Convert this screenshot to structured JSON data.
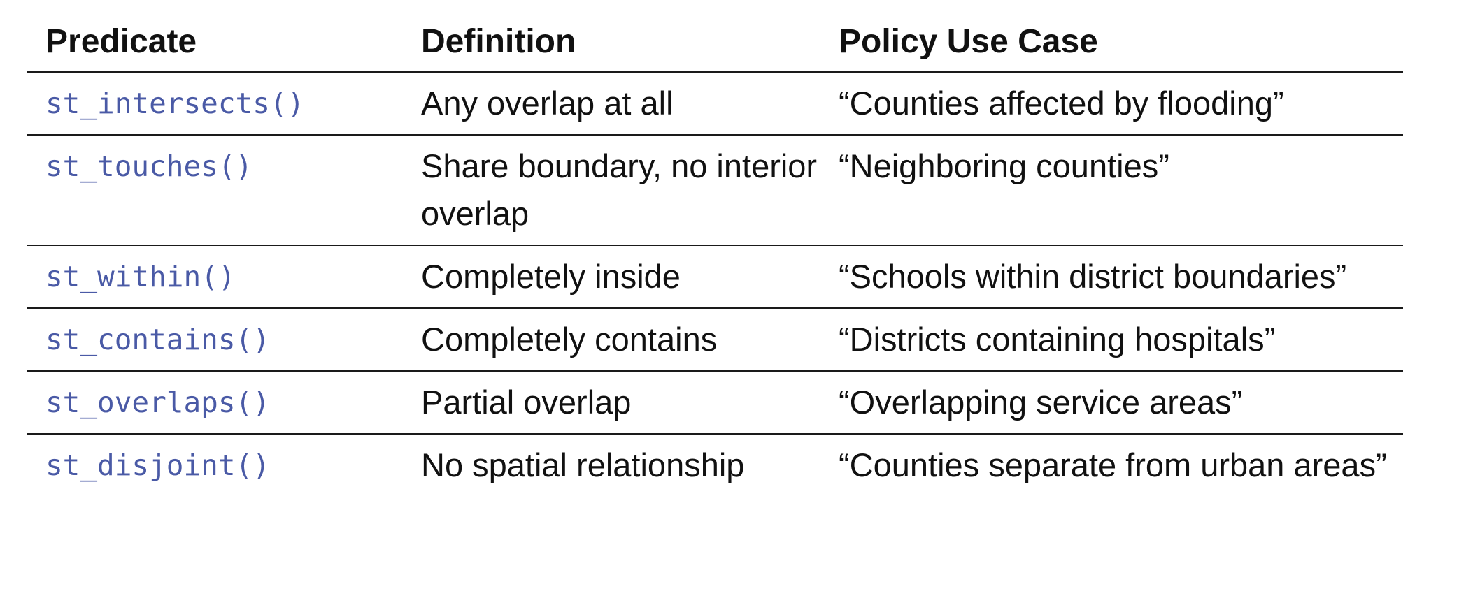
{
  "headers": {
    "predicate": "Predicate",
    "definition": "Definition",
    "policy": "Policy Use Case"
  },
  "rows": [
    {
      "predicate": "st_intersects()",
      "definition": "Any overlap at all",
      "policy": "“Counties affected by flooding”"
    },
    {
      "predicate": "st_touches()",
      "definition": "Share boundary, no interior overlap",
      "policy": "“Neighboring counties”"
    },
    {
      "predicate": "st_within()",
      "definition": "Completely inside",
      "policy": "“Schools within district boundaries”"
    },
    {
      "predicate": "st_contains()",
      "definition": "Completely contains",
      "policy": "“Districts containing hospitals”"
    },
    {
      "predicate": "st_overlaps()",
      "definition": "Partial overlap",
      "policy": "“Overlapping service areas”"
    },
    {
      "predicate": "st_disjoint()",
      "definition": "No spatial relationship",
      "policy": "“Counties separate from urban areas”"
    }
  ],
  "colors": {
    "code": "#4a5aa6",
    "text": "#111111",
    "rule": "#1a1a1a"
  }
}
